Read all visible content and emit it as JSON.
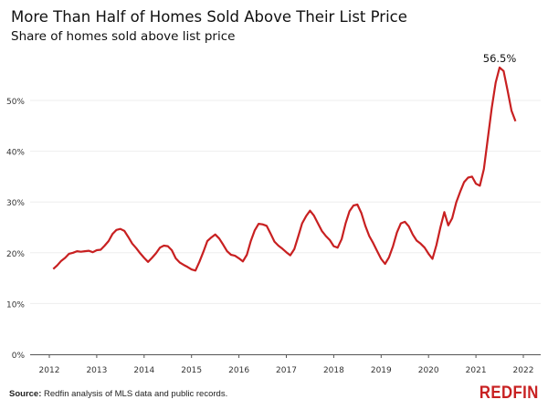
{
  "chart_data": {
    "type": "line",
    "title": "More Than Half of Homes Sold Above Their List Price",
    "subtitle": "Share of homes sold above list price",
    "xlabel": "",
    "ylabel": "",
    "ylim": [
      0,
      57
    ],
    "xlim": [
      "2011-11",
      "2022-04"
    ],
    "grid": true,
    "yticks": [
      "0%",
      "10%",
      "20%",
      "30%",
      "40%",
      "50%"
    ],
    "yticks_values": [
      0,
      10,
      20,
      30,
      40,
      50
    ],
    "xticks": [
      "2012",
      "2013",
      "2014",
      "2015",
      "2016",
      "2017",
      "2018",
      "2019",
      "2020",
      "2021",
      "2022"
    ],
    "line_color": "#c82021",
    "annotation": {
      "label": "56.5%",
      "x": "2021-07",
      "y": 56.5
    },
    "start": "2012-02",
    "frequency": "monthly",
    "values": [
      16.8,
      17.5,
      18.4,
      19.0,
      19.8,
      20.0,
      20.3,
      20.2,
      20.3,
      20.4,
      20.1,
      20.5,
      20.6,
      21.4,
      22.3,
      23.7,
      24.5,
      24.7,
      24.3,
      23.1,
      21.8,
      20.9,
      19.9,
      19.0,
      18.2,
      19.0,
      19.9,
      21.0,
      21.4,
      21.3,
      20.5,
      18.9,
      18.1,
      17.6,
      17.2,
      16.7,
      16.5,
      18.2,
      20.2,
      22.3,
      23.0,
      23.6,
      22.8,
      21.6,
      20.3,
      19.6,
      19.4,
      18.9,
      18.3,
      19.6,
      22.3,
      24.4,
      25.7,
      25.6,
      25.3,
      23.8,
      22.2,
      21.4,
      20.8,
      20.1,
      19.5,
      20.7,
      23.2,
      25.8,
      27.2,
      28.3,
      27.3,
      25.8,
      24.3,
      23.3,
      22.5,
      21.3,
      21.0,
      22.7,
      25.8,
      28.2,
      29.3,
      29.5,
      27.8,
      25.3,
      23.3,
      21.9,
      20.3,
      18.8,
      17.8,
      19.1,
      21.3,
      24.0,
      25.8,
      26.1,
      25.2,
      23.6,
      22.4,
      21.8,
      21.0,
      19.8,
      18.8,
      21.5,
      25.0,
      28.0,
      25.4,
      26.8,
      29.9,
      32.0,
      33.9,
      34.8,
      35.0,
      33.6,
      33.2,
      36.5,
      42.5,
      48.5,
      53.5,
      56.5,
      55.8,
      52.0,
      48.0,
      45.9
    ]
  },
  "footer": {
    "source_label": "Source:",
    "source_text": " Redfin analysis of MLS data and public records.",
    "logo": "REDFIN"
  }
}
